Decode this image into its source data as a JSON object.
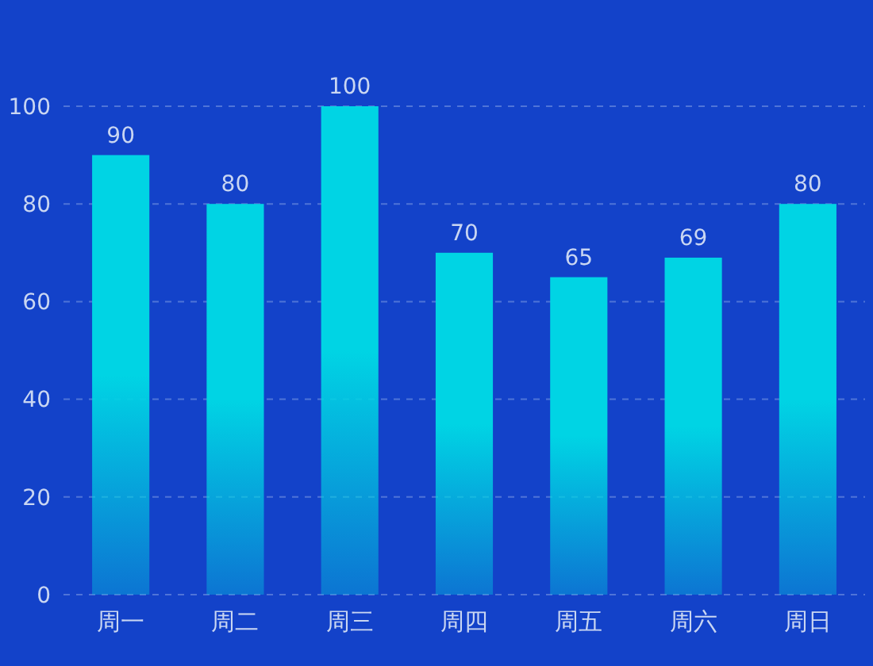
{
  "chart_data": {
    "type": "bar",
    "categories": [
      "周一",
      "周二",
      "周三",
      "周四",
      "周五",
      "周六",
      "周日"
    ],
    "values": [
      90,
      80,
      100,
      70,
      65,
      69,
      80
    ],
    "color": "#00d4e4",
    "ylim": [
      0,
      100
    ],
    "yticks": [
      0,
      20,
      40,
      60,
      80,
      100
    ],
    "grid": "y",
    "data_labels": true
  }
}
